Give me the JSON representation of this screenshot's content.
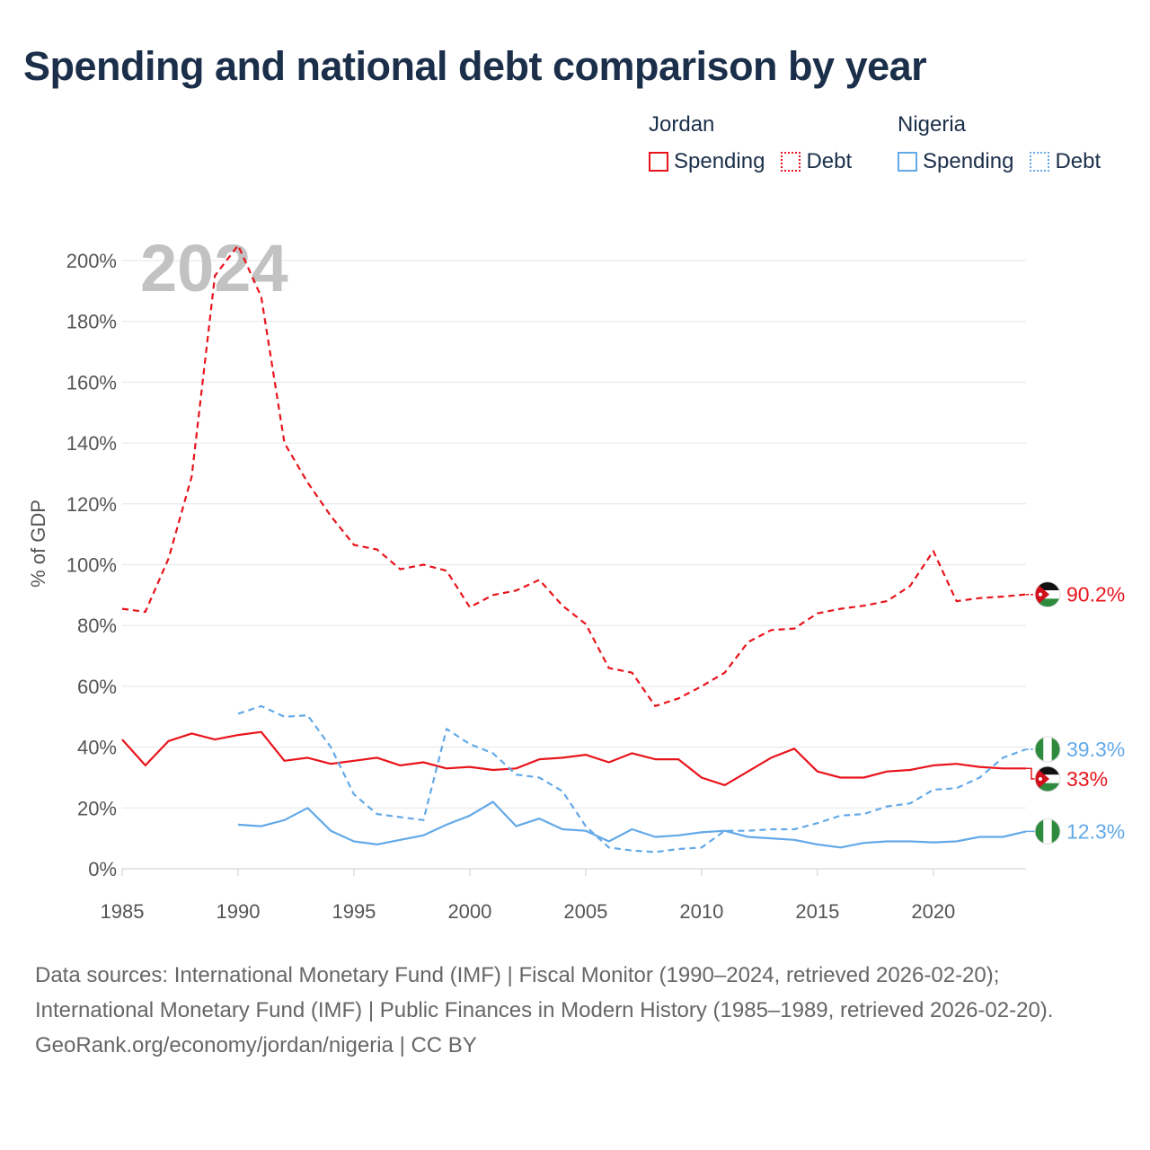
{
  "title": "Spending and national debt comparison by year",
  "colors": {
    "jordan": "#e8141c",
    "nigeria": "#63a9e8",
    "grid": "#e6e6e6",
    "text": "#1b2f4a"
  },
  "legend": {
    "jordan": {
      "name": "Jordan",
      "spending_label": "Spending",
      "debt_label": "Debt"
    },
    "nigeria": {
      "name": "Nigeria",
      "spending_label": "Spending",
      "debt_label": "Debt"
    }
  },
  "footer": {
    "sources": "Data sources: International Monetary Fund (IMF) | Fiscal Monitor (1990–2024, retrieved 2026-02-20); International Monetary Fund (IMF) | Public Finances in Modern History (1985–1989, retrieved 2026-02-20).",
    "attribution": "GeoRank.org/economy/jordan/nigeria | CC BY"
  },
  "chart_data": {
    "type": "line",
    "year_watermark": "2024",
    "ylabel": "% of GDP",
    "xlabel": "",
    "xlim": [
      1985,
      2024
    ],
    "ylim": [
      0,
      200
    ],
    "x_ticks": [
      1985,
      1990,
      1995,
      2000,
      2005,
      2010,
      2015,
      2020
    ],
    "y_ticks": [
      0,
      20,
      40,
      60,
      80,
      100,
      120,
      140,
      160,
      180,
      200
    ],
    "y_tick_labels": [
      "0%",
      "20%",
      "40%",
      "60%",
      "80%",
      "100%",
      "120%",
      "140%",
      "160%",
      "180%",
      "200%"
    ],
    "grid": true,
    "series": [
      {
        "name": "Jordan Debt",
        "country": "jordan",
        "metric": "debt",
        "style": "dashed",
        "end_label": "90.2%",
        "x": [
          1985,
          1986,
          1987,
          1988,
          1989,
          1990,
          1991,
          1992,
          1993,
          1994,
          1995,
          1996,
          1997,
          1998,
          1999,
          2000,
          2001,
          2002,
          2003,
          2004,
          2005,
          2006,
          2007,
          2008,
          2009,
          2010,
          2011,
          2012,
          2013,
          2014,
          2015,
          2016,
          2017,
          2018,
          2019,
          2020,
          2021,
          2022,
          2023,
          2024
        ],
        "values": [
          85.5,
          84.5,
          102,
          129,
          195,
          205,
          188,
          140,
          127,
          116,
          106.5,
          105,
          98.5,
          100,
          98,
          86,
          90,
          91.5,
          95,
          86.5,
          80.5,
          66,
          64.5,
          53.5,
          56,
          60,
          64.5,
          74.5,
          78.5,
          79,
          84,
          85.5,
          86.5,
          88,
          93,
          104.5,
          88,
          89,
          89.5,
          90.2
        ]
      },
      {
        "name": "Jordan Spending",
        "country": "jordan",
        "metric": "spending",
        "style": "solid",
        "end_label": "33%",
        "x": [
          1985,
          1986,
          1987,
          1988,
          1989,
          1990,
          1991,
          1992,
          1993,
          1994,
          1995,
          1996,
          1997,
          1998,
          1999,
          2000,
          2001,
          2002,
          2003,
          2004,
          2005,
          2006,
          2007,
          2008,
          2009,
          2010,
          2011,
          2012,
          2013,
          2014,
          2015,
          2016,
          2017,
          2018,
          2019,
          2020,
          2021,
          2022,
          2023,
          2024
        ],
        "values": [
          42.5,
          34,
          42,
          44.5,
          42.5,
          44,
          45,
          35.5,
          36.5,
          34.5,
          35.5,
          36.5,
          34,
          35,
          33,
          33.5,
          32.5,
          33,
          36,
          36.5,
          37.5,
          35,
          38,
          36,
          36,
          30,
          27.5,
          32,
          36.5,
          39.5,
          32,
          30,
          30,
          32,
          32.5,
          34,
          34.5,
          33.5,
          33,
          33
        ]
      },
      {
        "name": "Nigeria Debt",
        "country": "nigeria",
        "metric": "debt",
        "style": "dashed",
        "end_label": "39.3%",
        "x": [
          1990,
          1991,
          1992,
          1993,
          1994,
          1995,
          1996,
          1997,
          1998,
          1999,
          2000,
          2001,
          2002,
          2003,
          2004,
          2005,
          2006,
          2007,
          2008,
          2009,
          2010,
          2011,
          2012,
          2013,
          2014,
          2015,
          2016,
          2017,
          2018,
          2019,
          2020,
          2021,
          2022,
          2023,
          2024
        ],
        "values": [
          51,
          53.5,
          50,
          50.5,
          40,
          24.5,
          18,
          17,
          16,
          46,
          41,
          38,
          31,
          30,
          25.5,
          14,
          7,
          6,
          5.5,
          6.5,
          7,
          12.5,
          12.5,
          13,
          13,
          15,
          17.5,
          18,
          20.5,
          21.5,
          26,
          26.5,
          30,
          36.5,
          39.3
        ]
      },
      {
        "name": "Nigeria Spending",
        "country": "nigeria",
        "metric": "spending",
        "style": "solid",
        "end_label": "12.3%",
        "x": [
          1990,
          1991,
          1992,
          1993,
          1994,
          1995,
          1996,
          1997,
          1998,
          1999,
          2000,
          2001,
          2002,
          2003,
          2004,
          2005,
          2006,
          2007,
          2008,
          2009,
          2010,
          2011,
          2012,
          2013,
          2014,
          2015,
          2016,
          2017,
          2018,
          2019,
          2020,
          2021,
          2022,
          2023,
          2024
        ],
        "values": [
          14.5,
          14,
          16,
          20,
          12.5,
          9,
          8,
          9.5,
          11,
          14.5,
          17.5,
          22,
          14,
          16.5,
          13,
          12.5,
          9,
          13,
          10.5,
          11,
          12,
          12.5,
          10.5,
          10,
          9.5,
          8,
          7,
          8.5,
          9,
          9,
          8.7,
          9,
          10.5,
          10.5,
          12.3
        ]
      }
    ]
  }
}
